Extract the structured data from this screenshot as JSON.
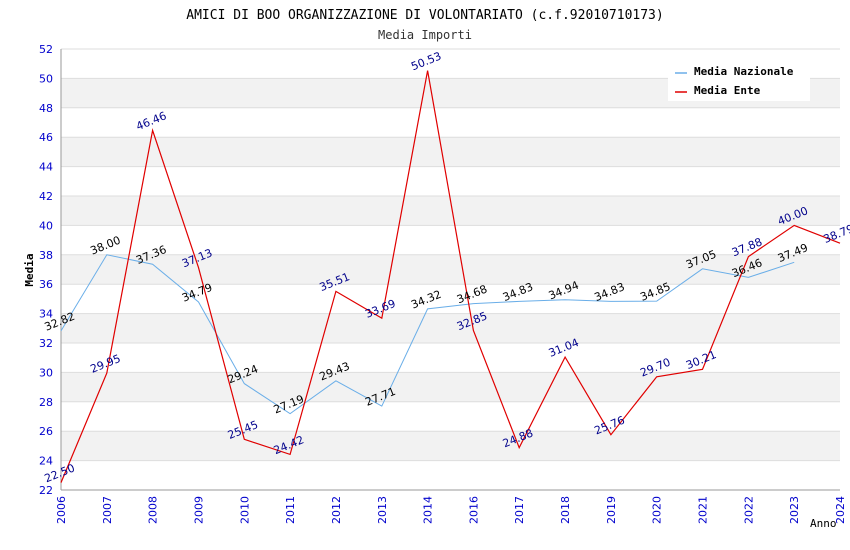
{
  "colors": {
    "national": "#6aaee8",
    "ente": "#e00000",
    "national_label": "#000000",
    "ente_label": "#00008b",
    "tick": "#0000cc",
    "grid_band": "#f2f2f2"
  },
  "chart_data": {
    "type": "line",
    "title": "AMICI DI BOO  ORGANIZZAZIONE DI VOLONTARIATO (c.f.92010710173)",
    "subtitle": "Media Importi",
    "xlabel": "Anno",
    "ylabel": "Media",
    "ylim": [
      22,
      52
    ],
    "yticks": [
      22,
      24,
      26,
      28,
      30,
      32,
      34,
      36,
      38,
      40,
      42,
      44,
      46,
      48,
      50,
      52
    ],
    "categories": [
      "2006",
      "2007",
      "2008",
      "2009",
      "2010",
      "2011",
      "2012",
      "2013",
      "2014",
      "2016",
      "2017",
      "2018",
      "2019",
      "2020",
      "2021",
      "2022",
      "2023",
      "2024"
    ],
    "grid": true,
    "legend_position": "top-right",
    "series": [
      {
        "name": "Media Nazionale",
        "values": [
          32.82,
          38.0,
          37.36,
          34.79,
          29.24,
          27.19,
          29.43,
          27.71,
          34.32,
          34.68,
          34.83,
          34.94,
          34.83,
          34.85,
          37.05,
          36.46,
          37.49,
          null
        ],
        "labels": [
          "32.82",
          "38.00",
          "37.36",
          "34.79",
          "29.24",
          "27.19",
          "29.43",
          "27.71",
          "34.32",
          "34.68",
          "34.83",
          "34.94",
          "34.83",
          "34.85",
          "37.05",
          "36.46",
          "37.49",
          ""
        ]
      },
      {
        "name": "Media Ente",
        "values": [
          22.5,
          29.95,
          46.46,
          37.13,
          25.45,
          24.42,
          35.51,
          33.69,
          50.53,
          32.85,
          24.88,
          31.04,
          25.76,
          29.7,
          30.21,
          37.88,
          40.0,
          38.79
        ],
        "labels": [
          "22.50",
          "29.95",
          "46.46",
          "37.13",
          "25.45",
          "24.42",
          "35.51",
          "33.69",
          "50.53",
          "32.85",
          "24.88",
          "31.04",
          "25.76",
          "29.70",
          "30.21",
          "37.88",
          "40.00",
          "38.79"
        ]
      }
    ]
  }
}
